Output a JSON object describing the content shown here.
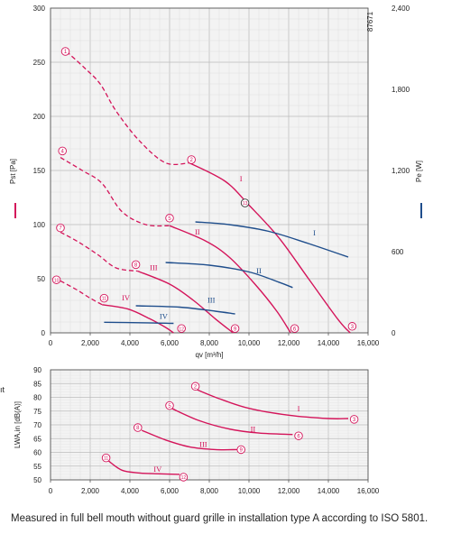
{
  "colors": {
    "pressure": "#d4145a",
    "power": "#1f4e8c",
    "grid": "#c9c9c9",
    "plotbg": "#f3f3f3"
  },
  "figure_id": "87671",
  "footnote": "Measured in full bell mouth without guard grille in installation type A according to ISO 5801.",
  "left_cut_text": "ıt",
  "chart_data": [
    {
      "type": "line",
      "title": "",
      "xlabel": "qv [m³/h]",
      "ylabel_left": "Pst [Pa]",
      "ylabel_right": "Pe [W]",
      "xlim": [
        0,
        16000
      ],
      "ylim_left": [
        0,
        300
      ],
      "ylim_right": [
        0,
        2400
      ],
      "xticks": [
        "0",
        "2,000",
        "4,000",
        "6,000",
        "8,000",
        "10,000",
        "12,000",
        "14,000",
        "16,000"
      ],
      "yticks_left": [
        "0",
        "50",
        "100",
        "150",
        "200",
        "250",
        "300"
      ],
      "yticks_right": [
        "0",
        "600",
        "1,200",
        "1,800",
        "2,400"
      ],
      "grid": true,
      "pressure_series": [
        {
          "name": "I",
          "stall_x": [
            800,
            1700,
            2500,
            3300,
            4500,
            5800,
            7000
          ],
          "stall_y": [
            260,
            245,
            230,
            205,
            177,
            157,
            157
          ],
          "x": [
            7000,
            8800,
            10000,
            11500,
            13000,
            14500,
            15100
          ],
          "y": [
            157,
            140,
            118,
            88,
            50,
            12,
            0
          ]
        },
        {
          "name": "II",
          "stall_x": [
            500,
            1600,
            2600,
            3600,
            4800,
            6000
          ],
          "stall_y": [
            162,
            150,
            138,
            112,
            100,
            99
          ],
          "x": [
            6000,
            7800,
            9000,
            10300,
            11400,
            12100
          ],
          "y": [
            99,
            85,
            70,
            45,
            20,
            0
          ]
        },
        {
          "name": "III",
          "stall_x": [
            500,
            1400,
            2400,
            3300,
            4400
          ],
          "stall_y": [
            93,
            84,
            72,
            60,
            57
          ],
          "x": [
            4400,
            6000,
            7200,
            8300,
            9200
          ],
          "y": [
            57,
            45,
            30,
            13,
            0
          ]
        },
        {
          "name": "IV",
          "stall_x": [
            500,
            1300,
            2000,
            2600
          ],
          "stall_y": [
            48,
            40,
            32,
            26
          ],
          "x": [
            2600,
            3900,
            5000,
            5800,
            6200
          ],
          "y": [
            26,
            22,
            13,
            5,
            0
          ]
        }
      ],
      "power_series": [
        {
          "name": "I",
          "x": [
            7300,
            9000,
            11000,
            13000,
            15000
          ],
          "y": [
            820,
            800,
            750,
            660,
            560
          ]
        },
        {
          "name": "II",
          "x": [
            5800,
            8000,
            10000,
            11500,
            12200
          ],
          "y": [
            520,
            500,
            450,
            375,
            335
          ]
        },
        {
          "name": "III",
          "x": [
            4300,
            6500,
            8300,
            9300
          ],
          "y": [
            200,
            190,
            160,
            140
          ]
        },
        {
          "name": "IV",
          "x": [
            2700,
            4500,
            6200
          ],
          "y": [
            78,
            75,
            70
          ]
        }
      ],
      "operating_points": [
        {
          "label": "1",
          "x": 750,
          "y": 260
        },
        {
          "label": "2",
          "x": 7100,
          "y": 160
        },
        {
          "label": "3",
          "x": 15200,
          "y": 6
        },
        {
          "label": "4",
          "x": 600,
          "y": 168
        },
        {
          "label": "5",
          "x": 6000,
          "y": 106
        },
        {
          "label": "6",
          "x": 12300,
          "y": 4
        },
        {
          "label": "7",
          "x": 500,
          "y": 97
        },
        {
          "label": "8",
          "x": 4300,
          "y": 63
        },
        {
          "label": "9",
          "x": 9300,
          "y": 4
        },
        {
          "label": "10",
          "x": 300,
          "y": 49
        },
        {
          "label": "11",
          "x": 2700,
          "y": 32
        },
        {
          "label": "12",
          "x": 6600,
          "y": 4
        },
        {
          "label": "13",
          "x": 9800,
          "y": 120
        }
      ],
      "series_labels": [
        {
          "text": "I",
          "x": 9600,
          "y": 140,
          "color": "pressure"
        },
        {
          "text": "II",
          "x": 7400,
          "y": 91,
          "color": "pressure"
        },
        {
          "text": "III",
          "x": 5200,
          "y": 58,
          "color": "pressure"
        },
        {
          "text": "IV",
          "x": 3800,
          "y": 30,
          "color": "pressure"
        },
        {
          "text": "I",
          "x": 13300,
          "y": 90,
          "color": "power"
        },
        {
          "text": "II",
          "x": 10500,
          "y": 55,
          "color": "power"
        },
        {
          "text": "III",
          "x": 8100,
          "y": 28,
          "color": "power"
        },
        {
          "text": "IV",
          "x": 5700,
          "y": 13,
          "color": "power"
        }
      ]
    },
    {
      "type": "line",
      "title": "",
      "xlabel": "",
      "ylabel": "LWA,in [dB(A)]",
      "xlim": [
        0,
        16000
      ],
      "ylim": [
        50,
        90
      ],
      "xticks": [
        "0",
        "2,000",
        "4,000",
        "6,000",
        "8,000",
        "10,000",
        "12,000",
        "14,000",
        "16,000"
      ],
      "yticks": [
        "50",
        "55",
        "60",
        "65",
        "70",
        "75",
        "80",
        "85",
        "90"
      ],
      "grid": true,
      "series": [
        {
          "name": "I",
          "x": [
            7300,
            8500,
            10000,
            12000,
            14000,
            15000
          ],
          "y": [
            83,
            79.5,
            76,
            73.5,
            72.3,
            72.3
          ]
        },
        {
          "name": "II",
          "x": [
            6100,
            7500,
            9000,
            10500,
            12200
          ],
          "y": [
            76,
            71.5,
            68.5,
            67,
            66.5
          ]
        },
        {
          "name": "III",
          "x": [
            4600,
            5800,
            7000,
            8300,
            9400
          ],
          "y": [
            68,
            64.5,
            62,
            61,
            61
          ]
        },
        {
          "name": "IV",
          "x": [
            2900,
            3600,
            4500,
            5500,
            6500
          ],
          "y": [
            57,
            53.5,
            52.5,
            52.2,
            52
          ]
        }
      ],
      "operating_points": [
        {
          "label": "2",
          "x": 7300,
          "y": 84
        },
        {
          "label": "3",
          "x": 15300,
          "y": 72
        },
        {
          "label": "5",
          "x": 6000,
          "y": 77
        },
        {
          "label": "6",
          "x": 12500,
          "y": 66
        },
        {
          "label": "8",
          "x": 4400,
          "y": 69
        },
        {
          "label": "9",
          "x": 9600,
          "y": 61
        },
        {
          "label": "11",
          "x": 2800,
          "y": 58
        },
        {
          "label": "12",
          "x": 6700,
          "y": 51
        }
      ],
      "series_labels": [
        {
          "text": "I",
          "x": 12500,
          "y": 75
        },
        {
          "text": "II",
          "x": 10200,
          "y": 67.5
        },
        {
          "text": "III",
          "x": 7700,
          "y": 62
        },
        {
          "text": "IV",
          "x": 5400,
          "y": 53
        }
      ]
    }
  ]
}
